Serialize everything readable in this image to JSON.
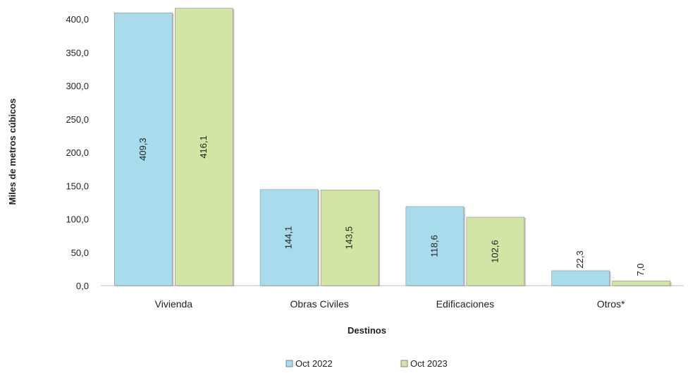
{
  "chart_data": {
    "type": "bar",
    "title": "",
    "xlabel": "Destinos",
    "ylabel": "Miles de metros cúbicos",
    "categories": [
      "Vivienda",
      "Obras Civiles",
      "Edificaciones",
      "Otros*"
    ],
    "series": [
      {
        "name": "Oct 2022",
        "values": [
          409.3,
          144.1,
          118.6,
          22.3
        ],
        "labels": [
          "409,3",
          "144,1",
          "118,6",
          "22,3"
        ],
        "color": "#a8dcec"
      },
      {
        "name": "Oct 2023",
        "values": [
          416.1,
          143.5,
          102.6,
          7.0
        ],
        "labels": [
          "416,1",
          "143,5",
          "102,6",
          "7,0"
        ],
        "color": "#d2e5a4"
      }
    ],
    "ylim": [
      0,
      400
    ],
    "yticks": [
      0,
      50,
      100,
      150,
      200,
      250,
      300,
      350,
      400
    ],
    "ytick_labels": [
      "0,0",
      "50,0",
      "100,0",
      "150,0",
      "200,0",
      "250,0",
      "300,0",
      "350,0",
      "400,0"
    ],
    "grid": false,
    "legend_position": "bottom"
  }
}
